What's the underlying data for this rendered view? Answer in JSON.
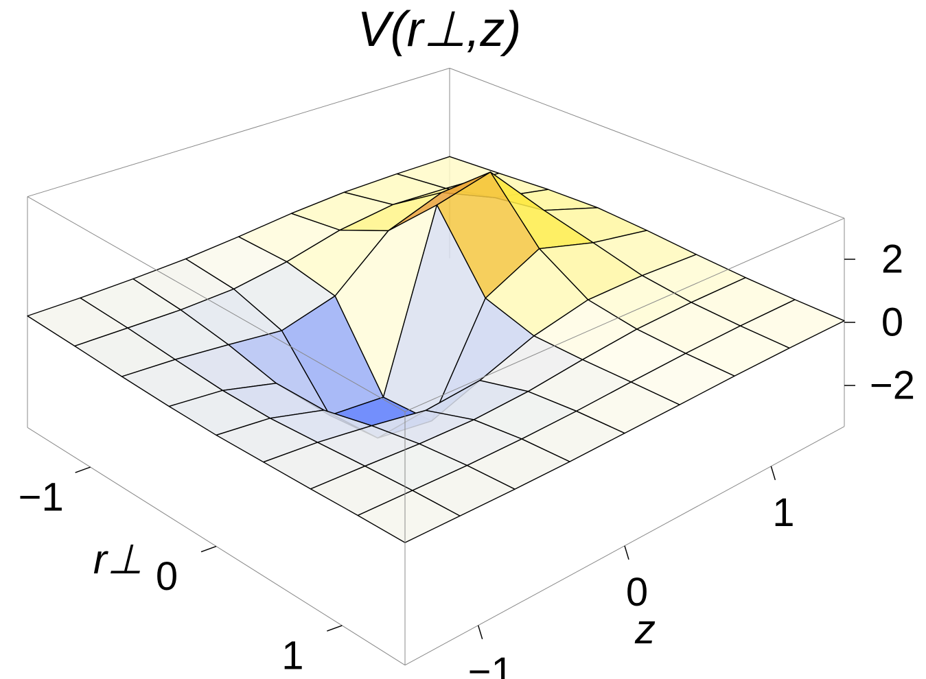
{
  "chart_data": {
    "type": "surface3d",
    "title": "V(r⊥,z)",
    "xlabel": "z",
    "ylabel": "r⊥",
    "x": [
      -1.5,
      -1.125,
      -0.75,
      -0.375,
      0,
      0.375,
      0.75,
      1.125,
      1.5
    ],
    "y": [
      -1.5,
      -1.125,
      -0.75,
      -0.375,
      0,
      0.375,
      0.75,
      1.125,
      1.5
    ],
    "values": [
      [
        -0.11,
        -0.13,
        -0.12,
        -0.08,
        0.03,
        0.18,
        0.27,
        0.27,
        0.23
      ],
      [
        -0.16,
        -0.21,
        -0.26,
        -0.23,
        0.0,
        0.38,
        0.58,
        0.48,
        0.34
      ],
      [
        -0.22,
        -0.33,
        -0.51,
        -0.72,
        -0.31,
        1.08,
        1.67,
        0.86,
        0.46
      ],
      [
        -0.26,
        -0.43,
        -0.86,
        -2.47,
        -2.64,
        2.58,
        3,
        1.12,
        0.51
      ],
      [
        -0.27,
        -0.44,
        -0.87,
        -2.37,
        -2.6,
        0.4,
        1.25,
        0.74,
        0.41
      ],
      [
        -0.23,
        -0.35,
        -0.56,
        -0.82,
        -0.66,
        -0.05,
        0.33,
        0.35,
        0.27
      ],
      [
        -0.19,
        -0.25,
        -0.33,
        -0.36,
        -0.27,
        -0.07,
        0.1,
        0.16,
        0.16
      ],
      [
        -0.14,
        -0.17,
        -0.2,
        -0.19,
        -0.14,
        -0.05,
        0.03,
        0.08,
        0.09
      ],
      [
        -0.11,
        -0.12,
        -0.13,
        -0.12,
        -0.08,
        -0.04,
        0.01,
        0.04,
        0.05
      ]
    ],
    "xlim": [
      -1.5,
      1.5
    ],
    "ylim": [
      -1.5,
      1.5
    ],
    "zlim": [
      -3.3,
      3.3
    ],
    "xticks": [
      {
        "value": -1,
        "label": "−1"
      },
      0,
      1
    ],
    "yticks": [
      {
        "value": -1,
        "label": "−1"
      },
      0,
      1
    ],
    "zticks": [
      {
        "value": -2,
        "label": "−2"
      },
      0,
      2
    ],
    "colors": {
      "negative": "#3a62ff",
      "zero": "#fffdec",
      "positive_mid": "#fff04a",
      "positive": "#c8281e"
    },
    "mesh": true
  }
}
